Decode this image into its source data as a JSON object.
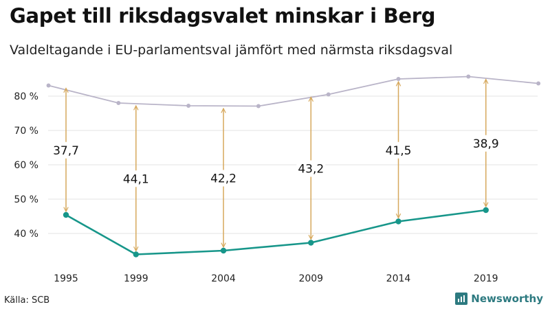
{
  "header": {
    "title": "Gapet till riksdagsvalet minskar i Berg",
    "subtitle": "Valdeltagande i EU-parlamentsval jämfört med närmsta riksdagsval"
  },
  "footer": {
    "source": "Källa: SCB",
    "brand": "Newsworthy"
  },
  "colors": {
    "eu": "#17968a",
    "riksdag": "#b9b4c8",
    "gap": "#d6a85c",
    "brand": "#2d7a80"
  },
  "chart_data": {
    "type": "line",
    "title": "Gapet till riksdagsvalet minskar i Berg",
    "subtitle": "Valdeltagande i EU-parlamentsval jämfört med närmsta riksdagsval",
    "xlabel": "",
    "ylabel": "",
    "xlim": [
      1995,
      2021.8
    ],
    "ylim": [
      30,
      88
    ],
    "x_ticks": [
      1995,
      1999,
      2004,
      2009,
      2014,
      2019
    ],
    "y_ticks": [
      {
        "value": 40,
        "label": "40 %"
      },
      {
        "value": 50,
        "label": "50 %"
      },
      {
        "value": 60,
        "label": "60 %"
      },
      {
        "value": 70,
        "label": "70 %"
      },
      {
        "value": 80,
        "label": "80 %"
      }
    ],
    "grid": true,
    "series": [
      {
        "key": "riksdag",
        "x": [
          1994,
          1998,
          2002,
          2006,
          2010,
          2014,
          2018,
          2022
        ],
        "values": [
          83.1,
          78.0,
          77.2,
          77.1,
          80.5,
          85.0,
          85.7,
          83.7
        ]
      },
      {
        "key": "eu",
        "x": [
          1995,
          1999,
          2004,
          2009,
          2014,
          2019
        ],
        "values": [
          45.4,
          33.9,
          35.0,
          37.3,
          43.5,
          46.8
        ]
      }
    ],
    "gaps": [
      {
        "x": 1995,
        "from": 45.4,
        "to": 83.1,
        "label": "37,7"
      },
      {
        "x": 1999,
        "from": 33.9,
        "to": 78.0,
        "label": "44,1"
      },
      {
        "x": 2004,
        "from": 35.0,
        "to": 77.2,
        "label": "42,2"
      },
      {
        "x": 2009,
        "from": 37.3,
        "to": 80.5,
        "label": "43,2"
      },
      {
        "x": 2014,
        "from": 43.5,
        "to": 85.0,
        "label": "41,5"
      },
      {
        "x": 2019,
        "from": 46.8,
        "to": 85.7,
        "label": "38,9"
      }
    ]
  }
}
